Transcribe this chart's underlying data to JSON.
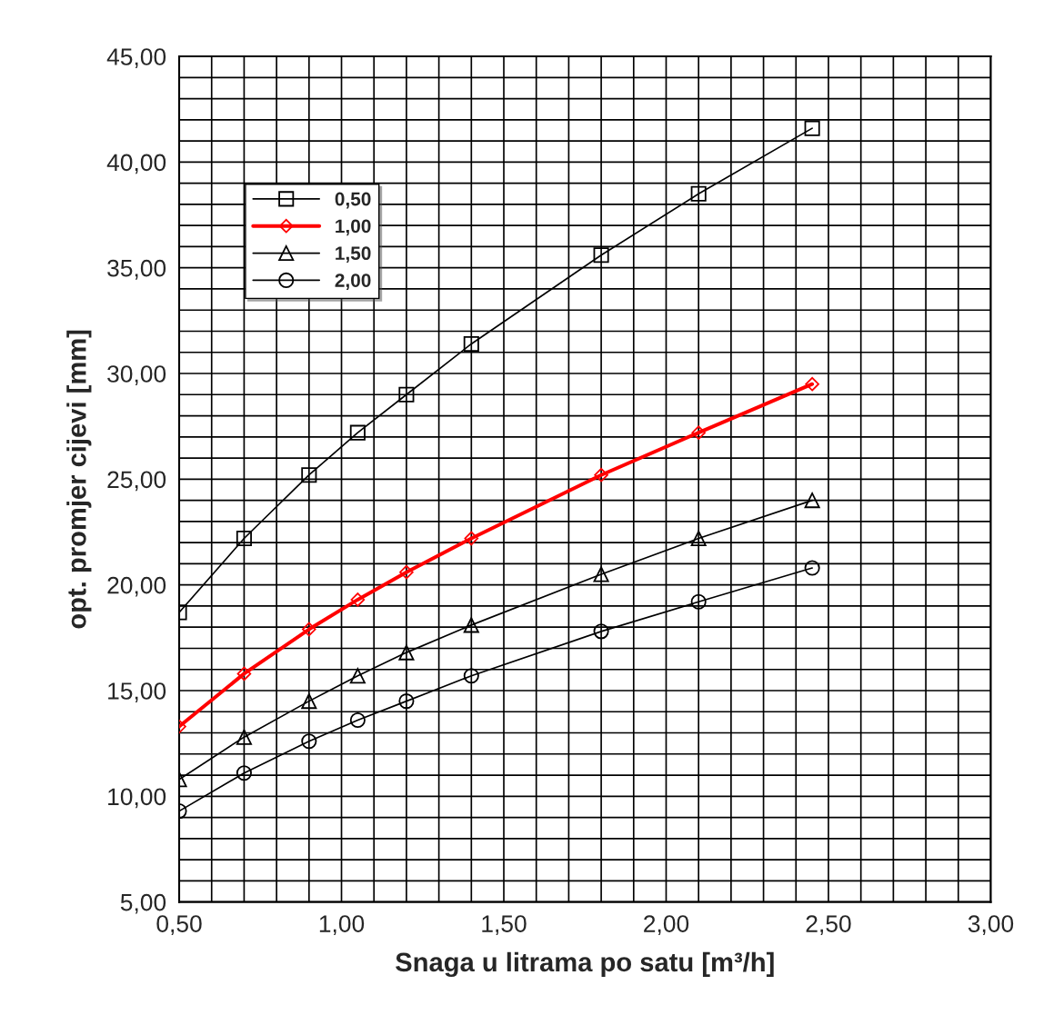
{
  "chart_data": {
    "type": "line",
    "xlabel": "Snaga u litrama po satu [m³/h]",
    "ylabel": "opt. promjer cijevi [mm]",
    "x": [
      0.5,
      0.7,
      0.9,
      1.05,
      1.2,
      1.4,
      1.8,
      2.1,
      2.45
    ],
    "series": [
      {
        "name": "0,50",
        "color": "#000000",
        "marker": "square",
        "values": [
          18.7,
          22.2,
          25.2,
          27.2,
          29.0,
          31.4,
          35.6,
          38.5,
          41.6
        ]
      },
      {
        "name": "1,00",
        "color": "#ff0000",
        "marker": "diamond",
        "values": [
          13.3,
          15.8,
          17.9,
          19.3,
          20.6,
          22.2,
          25.2,
          27.2,
          29.5
        ]
      },
      {
        "name": "1,50",
        "color": "#000000",
        "marker": "triangle",
        "values": [
          10.8,
          12.8,
          14.5,
          15.7,
          16.8,
          18.1,
          20.5,
          22.2,
          24.0
        ]
      },
      {
        "name": "2,00",
        "color": "#000000",
        "marker": "circle",
        "values": [
          9.3,
          11.1,
          12.6,
          13.6,
          14.5,
          15.7,
          17.8,
          19.2,
          20.8
        ]
      }
    ],
    "xlim": [
      0.5,
      3.0
    ],
    "xticks": [
      {
        "value": 0.5,
        "label": "0,50"
      },
      {
        "value": 0.6,
        "label": null
      },
      {
        "value": 0.7,
        "label": null
      },
      {
        "value": 0.8,
        "label": null
      },
      {
        "value": 0.9,
        "label": null
      },
      {
        "value": 1.0,
        "label": "1,00"
      },
      {
        "value": 1.1,
        "label": null
      },
      {
        "value": 1.2,
        "label": null
      },
      {
        "value": 1.3,
        "label": null
      },
      {
        "value": 1.4,
        "label": null
      },
      {
        "value": 1.5,
        "label": "1,50"
      },
      {
        "value": 1.6,
        "label": null
      },
      {
        "value": 1.7,
        "label": null
      },
      {
        "value": 1.8,
        "label": null
      },
      {
        "value": 1.9,
        "label": null
      },
      {
        "value": 2.0,
        "label": "2,00"
      },
      {
        "value": 2.1,
        "label": null
      },
      {
        "value": 2.2,
        "label": null
      },
      {
        "value": 2.3,
        "label": null
      },
      {
        "value": 2.4,
        "label": null
      },
      {
        "value": 2.5,
        "label": "2,50"
      },
      {
        "value": 2.6,
        "label": null
      },
      {
        "value": 2.7,
        "label": null
      },
      {
        "value": 2.8,
        "label": null
      },
      {
        "value": 2.9,
        "label": null
      },
      {
        "value": 3.0,
        "label": "3,00"
      }
    ],
    "ylim": [
      5,
      45
    ],
    "yticks": [
      {
        "value": 5,
        "label": "5,00"
      },
      {
        "value": 6,
        "label": null
      },
      {
        "value": 7,
        "label": null
      },
      {
        "value": 8,
        "label": null
      },
      {
        "value": 9,
        "label": null
      },
      {
        "value": 10,
        "label": "10,00"
      },
      {
        "value": 11,
        "label": null
      },
      {
        "value": 12,
        "label": null
      },
      {
        "value": 13,
        "label": null
      },
      {
        "value": 14,
        "label": null
      },
      {
        "value": 15,
        "label": "15,00"
      },
      {
        "value": 16,
        "label": null
      },
      {
        "value": 17,
        "label": null
      },
      {
        "value": 18,
        "label": null
      },
      {
        "value": 19,
        "label": null
      },
      {
        "value": 20,
        "label": "20,00"
      },
      {
        "value": 21,
        "label": null
      },
      {
        "value": 22,
        "label": null
      },
      {
        "value": 23,
        "label": null
      },
      {
        "value": 24,
        "label": null
      },
      {
        "value": 25,
        "label": "25,00"
      },
      {
        "value": 26,
        "label": null
      },
      {
        "value": 27,
        "label": null
      },
      {
        "value": 28,
        "label": null
      },
      {
        "value": 29,
        "label": null
      },
      {
        "value": 30,
        "label": "30,00"
      },
      {
        "value": 31,
        "label": null
      },
      {
        "value": 32,
        "label": null
      },
      {
        "value": 33,
        "label": null
      },
      {
        "value": 34,
        "label": null
      },
      {
        "value": 35,
        "label": "35,00"
      },
      {
        "value": 36,
        "label": null
      },
      {
        "value": 37,
        "label": null
      },
      {
        "value": 38,
        "label": null
      },
      {
        "value": 39,
        "label": null
      },
      {
        "value": 40,
        "label": "40,00"
      },
      {
        "value": 41,
        "label": null
      },
      {
        "value": 42,
        "label": null
      },
      {
        "value": 43,
        "label": null
      },
      {
        "value": 44,
        "label": null
      },
      {
        "value": 45,
        "label": "45,00"
      }
    ],
    "grid": true,
    "legend": "top left",
    "line_style": "solid"
  }
}
